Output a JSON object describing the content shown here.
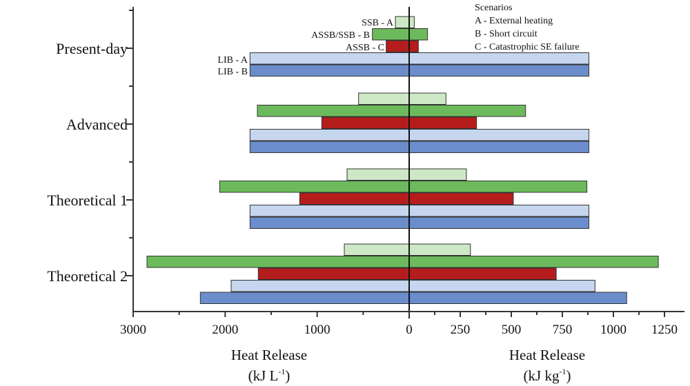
{
  "chart_data": {
    "type": "bar",
    "orientation": "horizontal",
    "layout": "back-to-back",
    "categories": [
      "Present-day",
      "Advanced",
      "Theoretical 1",
      "Theoretical 2"
    ],
    "bar_labels_present_day": [
      "SSB - A",
      "ASSB/SSB - B",
      "ASSB - C",
      "LIB - A",
      "LIB - B"
    ],
    "series": [
      {
        "key": "ssb_a",
        "color": "#cde8c5",
        "left_kJ_per_L": [
          150,
          550,
          675,
          705
        ],
        "right_kJ_per_kg": [
          25,
          180,
          280,
          300
        ]
      },
      {
        "key": "ssb_b",
        "color": "#6cba5c",
        "left_kJ_per_L": [
          400,
          1650,
          2060,
          2850
        ],
        "right_kJ_per_kg": [
          90,
          570,
          870,
          1220
        ]
      },
      {
        "key": "ssb_c",
        "color": "#b51d1d",
        "left_kJ_per_L": [
          250,
          950,
          1190,
          1640
        ],
        "right_kJ_per_kg": [
          45,
          330,
          510,
          720
        ]
      },
      {
        "key": "lib_a",
        "color": "#c6d6ef",
        "left_kJ_per_L": [
          1730,
          1730,
          1730,
          1935
        ],
        "right_kJ_per_kg": [
          880,
          880,
          880,
          910
        ]
      },
      {
        "key": "lib_b",
        "color": "#6b8dcc",
        "left_kJ_per_L": [
          1730,
          1730,
          1730,
          2270
        ],
        "right_kJ_per_kg": [
          880,
          880,
          880,
          1065
        ]
      }
    ],
    "left_axis": {
      "label_line1": "Heat Release",
      "label_line2": "(kJ L",
      "label_sup": "-1",
      "label_end": ")",
      "range": [
        3000,
        0
      ],
      "ticks": [
        "3000",
        "2000",
        "1000",
        "0"
      ]
    },
    "right_axis": {
      "label_line1": "Heat Release",
      "label_line2": "(kJ kg",
      "label_sup": "-1",
      "label_end": ")",
      "range": [
        0,
        1250
      ],
      "ticks": [
        "250",
        "500",
        "750",
        "1000",
        "1250"
      ]
    },
    "legend": {
      "title": "Scenarios",
      "items": [
        "A - External heating",
        "B - Short circuit",
        "C - Catastrophic SE failure"
      ],
      "placement": "top-right"
    }
  }
}
